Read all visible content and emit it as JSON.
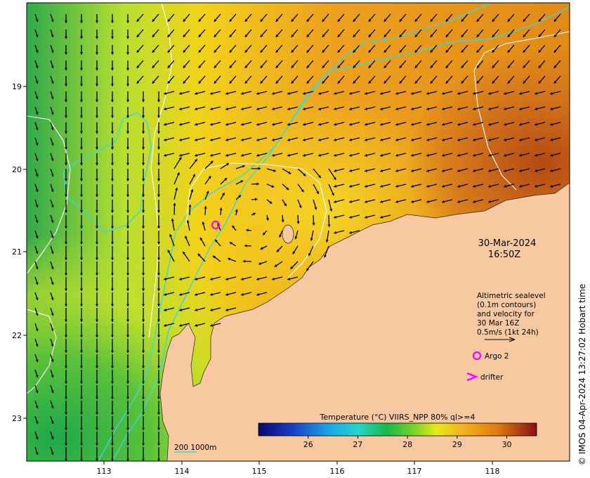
{
  "map": {
    "date": "30-Mar-2024",
    "time": "16:50Z",
    "credit": "© IMOS 04-Apr-2024 13:27:02 Hobart time",
    "x_ticks": [
      "113",
      "114",
      "115",
      "116",
      "117",
      "118"
    ],
    "y_ticks": [
      "19",
      "20",
      "21",
      "22",
      "23"
    ],
    "legend": {
      "line1": "Altimetric sealevel",
      "line2": "(0.1m contours)",
      "line3": "and velocity for",
      "line4": "30 Mar 16Z",
      "line5": "0.5m/s (1kt 24h)",
      "argo_label": "Argo 2",
      "drifter_label": "drifter",
      "argo_color": "#ff00ff",
      "drifter_color": "#ff00ff"
    },
    "colorbar": {
      "title": "Temperature (°C) VIIRS_NPP 80% ql>=4",
      "ticks": [
        "26",
        "27",
        "28",
        "29",
        "30"
      ],
      "range": [
        25,
        30.6
      ]
    },
    "isobath_label": "200 1000m",
    "colors": {
      "land": "#f8c9a0",
      "isobath": "#3ad8d8",
      "contour": "#ffffff",
      "arrow": "#000000"
    }
  }
}
